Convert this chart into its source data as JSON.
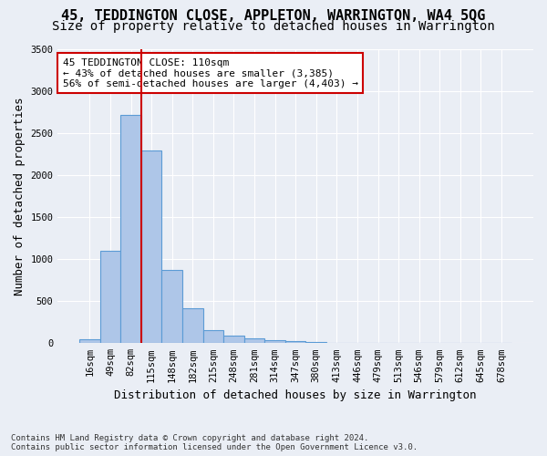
{
  "title": "45, TEDDINGTON CLOSE, APPLETON, WARRINGTON, WA4 5QG",
  "subtitle": "Size of property relative to detached houses in Warrington",
  "xlabel": "Distribution of detached houses by size in Warrington",
  "ylabel": "Number of detached properties",
  "bins": [
    "16sqm",
    "49sqm",
    "82sqm",
    "115sqm",
    "148sqm",
    "182sqm",
    "215sqm",
    "248sqm",
    "281sqm",
    "314sqm",
    "347sqm",
    "380sqm",
    "413sqm",
    "446sqm",
    "479sqm",
    "513sqm",
    "546sqm",
    "579sqm",
    "612sqm",
    "645sqm",
    "678sqm"
  ],
  "values": [
    50,
    1100,
    2720,
    2300,
    870,
    420,
    155,
    90,
    55,
    40,
    20,
    10,
    5,
    0,
    0,
    0,
    0,
    0,
    0,
    0,
    0
  ],
  "bar_color": "#aec6e8",
  "bar_edge_color": "#5b9bd5",
  "vline_pos": 2.5,
  "vline_color": "#cc0000",
  "annotation_text": "45 TEDDINGTON CLOSE: 110sqm\n← 43% of detached houses are smaller (3,385)\n56% of semi-detached houses are larger (4,403) →",
  "annotation_box_color": "#ffffff",
  "annotation_box_edge": "#cc0000",
  "ylim": [
    0,
    3500
  ],
  "yticks": [
    0,
    500,
    1000,
    1500,
    2000,
    2500,
    3000,
    3500
  ],
  "footer": "Contains HM Land Registry data © Crown copyright and database right 2024.\nContains public sector information licensed under the Open Government Licence v3.0.",
  "bg_color": "#eaeef5",
  "plot_bg_color": "#eaeef5",
  "title_fontsize": 11,
  "subtitle_fontsize": 10,
  "axis_fontsize": 9,
  "tick_fontsize": 7.5,
  "footer_fontsize": 6.5
}
